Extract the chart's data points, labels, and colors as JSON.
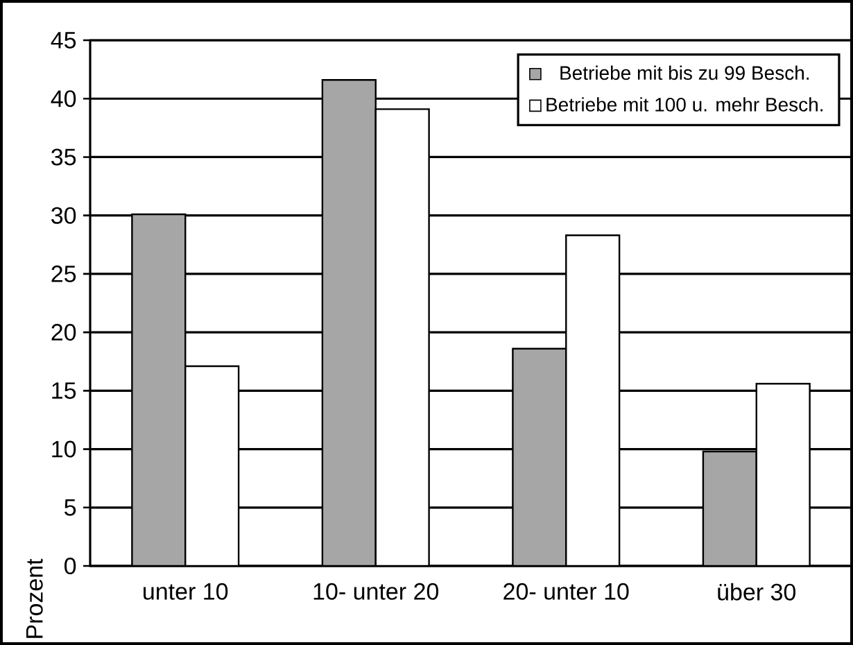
{
  "chart_data": {
    "type": "bar",
    "ylabel": "Prozent",
    "categories": [
      "unter 10",
      "10- unter 20",
      "20- unter 10",
      "über 30"
    ],
    "series": [
      {
        "name": "Betriebe mit bis zu 99 Besch.",
        "color": "#a6a6a6",
        "values": [
          30.1,
          41.6,
          18.6,
          9.8
        ]
      },
      {
        "name": "Betriebe mit 100 u. mehr Besch.",
        "color": "#ffffff",
        "values": [
          17.1,
          39.1,
          28.3,
          15.6
        ]
      }
    ],
    "ylim": [
      0,
      45
    ],
    "yticks": [
      0,
      5,
      10,
      15,
      20,
      25,
      30,
      35,
      40,
      45
    ],
    "grid": "y",
    "legend": "top right"
  }
}
